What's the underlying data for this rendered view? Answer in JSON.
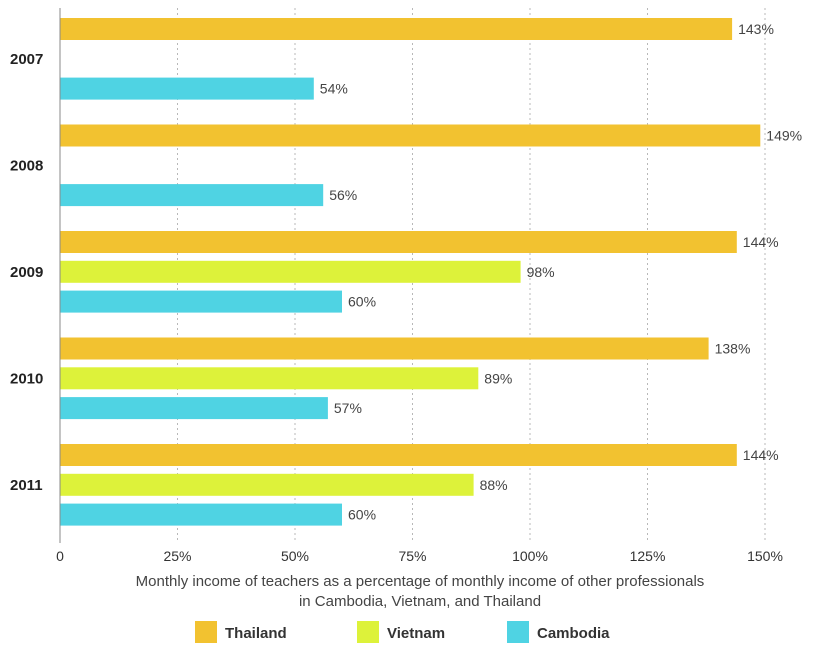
{
  "chart_data": {
    "type": "bar",
    "orientation": "horizontal",
    "categories": [
      "2007",
      "2008",
      "2009",
      "2010",
      "2011"
    ],
    "series": [
      {
        "name": "Thailand",
        "color": "#F2C230",
        "values": [
          143,
          149,
          144,
          138,
          144
        ]
      },
      {
        "name": "Vietnam",
        "color": "#DDF23A",
        "values": [
          null,
          null,
          98,
          89,
          88
        ]
      },
      {
        "name": "Cambodia",
        "color": "#4FD3E3",
        "values": [
          54,
          56,
          60,
          57,
          60
        ]
      }
    ],
    "value_suffix": "%",
    "xlim": [
      0,
      150
    ],
    "xticks": [
      0,
      25,
      50,
      75,
      100,
      125,
      150
    ],
    "xtick_labels": [
      "0",
      "25%",
      "50%",
      "75%",
      "100%",
      "125%",
      "150%"
    ],
    "xlabel_line1": "Monthly income of teachers as a percentage of monthly income of other professionals",
    "xlabel_line2": "in Cambodia, Vietnam, and Thailand",
    "grid": "vertical dotted",
    "legend_position": "bottom"
  }
}
